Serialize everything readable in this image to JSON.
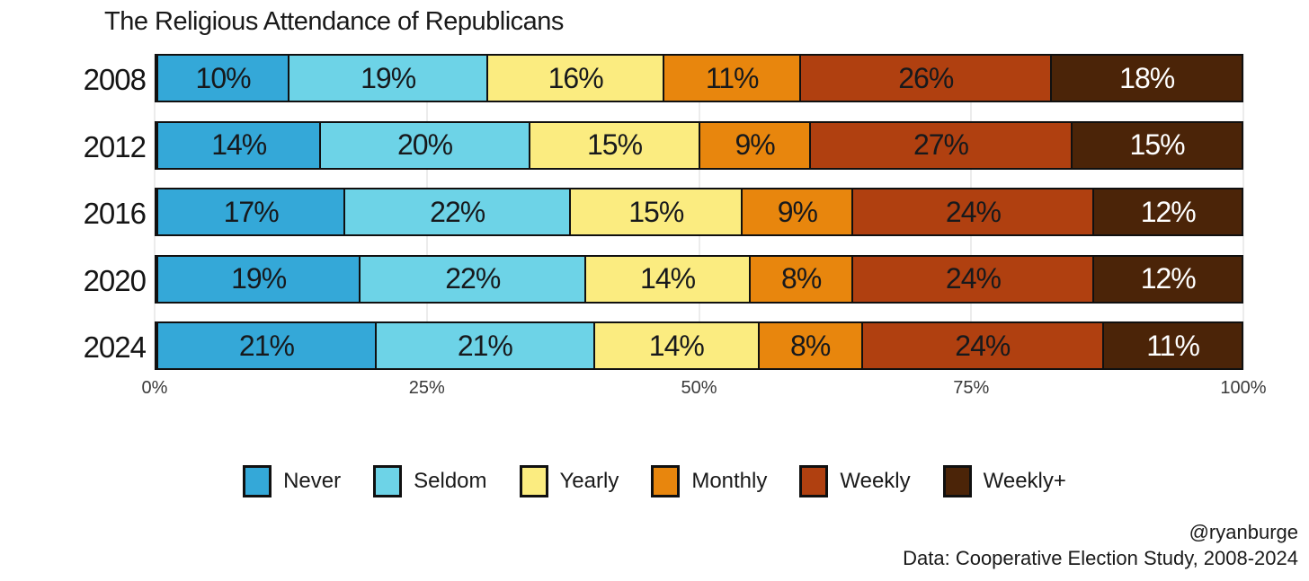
{
  "chart_data": {
    "type": "bar",
    "variant": "horizontal-stacked",
    "title": "The Religious Attendance of Republicans",
    "categories": [
      "2008",
      "2012",
      "2016",
      "2020",
      "2024"
    ],
    "series": [
      {
        "name": "Never",
        "color": "#34A8D8",
        "text_color": "#17191c",
        "values": [
          10,
          14,
          17,
          19,
          21
        ]
      },
      {
        "name": "Seldom",
        "color": "#6DD3E7",
        "text_color": "#17191c",
        "values": [
          19,
          20,
          22,
          22,
          21
        ]
      },
      {
        "name": "Yearly",
        "color": "#FBEC80",
        "text_color": "#17191c",
        "values": [
          16,
          15,
          15,
          14,
          14
        ]
      },
      {
        "name": "Monthly",
        "color": "#E8860D",
        "text_color": "#17191c",
        "values": [
          11,
          9,
          9,
          8,
          8
        ]
      },
      {
        "name": "Weekly",
        "color": "#B04010",
        "text_color": "#17191c",
        "values": [
          26,
          27,
          24,
          24,
          24
        ]
      },
      {
        "name": "Weekly+",
        "color": "#4B2408",
        "text_color": "#ffffff",
        "values": [
          18,
          15,
          12,
          12,
          11
        ]
      }
    ],
    "value_suffix": "%",
    "x_ticks": [
      {
        "label": "0%",
        "position": 0
      },
      {
        "label": "25%",
        "position": 25
      },
      {
        "label": "50%",
        "position": 50
      },
      {
        "label": "75%",
        "position": 75
      },
      {
        "label": "100%",
        "position": 100
      }
    ],
    "xlim": [
      0,
      100
    ],
    "grid": "vertical-light",
    "legend_position": "bottom-center"
  },
  "footer": {
    "credit": "@ryanburge",
    "source": "Data: Cooperative Election Study, 2008-2024"
  }
}
